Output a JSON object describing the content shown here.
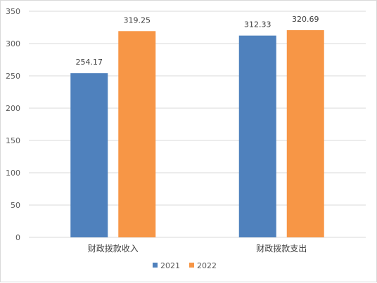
{
  "chart_data": {
    "type": "bar",
    "categories": [
      "财政拨款收入",
      "财政拨款支出"
    ],
    "series": [
      {
        "name": "2021",
        "values": [
          254.17,
          312.33
        ],
        "color": "#4f81bd"
      },
      {
        "name": "2022",
        "values": [
          319.25,
          320.69
        ],
        "color": "#f79646"
      }
    ],
    "ylim": [
      0,
      350
    ],
    "yticks": [
      0,
      50,
      100,
      150,
      200,
      250,
      300,
      350
    ],
    "title": "",
    "xlabel": "",
    "ylabel": "",
    "grid": true,
    "legend": "bottom-center",
    "data_labels": true
  }
}
